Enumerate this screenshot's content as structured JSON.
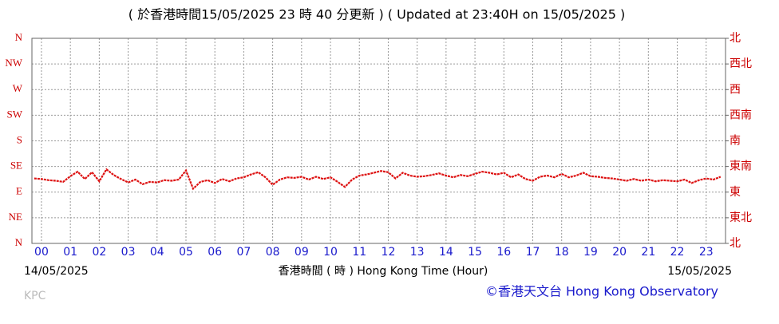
{
  "chart_data": {
    "type": "line",
    "title": "( 於香港時間15/05/2025 23 時 40 分更新 ) ( Updated at 23:40H on 15/05/2025 )",
    "xlabel": "香港時間 ( 時 )  Hong Kong Time (Hour)",
    "start_date": "14/05/2025",
    "end_date": "15/05/2025",
    "credit": "©香港天文台 Hong Kong Observatory",
    "watermark": "KPC",
    "xlim": [
      -0.33,
      23.67
    ],
    "ylim": [
      0,
      360
    ],
    "y2lim": [
      0,
      360
    ],
    "grid": true,
    "xticks": [
      {
        "value": 0,
        "label": "00"
      },
      {
        "value": 1,
        "label": "01"
      },
      {
        "value": 2,
        "label": "02"
      },
      {
        "value": 3,
        "label": "03"
      },
      {
        "value": 4,
        "label": "04"
      },
      {
        "value": 5,
        "label": "05"
      },
      {
        "value": 6,
        "label": "06"
      },
      {
        "value": 7,
        "label": "07"
      },
      {
        "value": 8,
        "label": "08"
      },
      {
        "value": 9,
        "label": "09"
      },
      {
        "value": 10,
        "label": "10"
      },
      {
        "value": 11,
        "label": "11"
      },
      {
        "value": 12,
        "label": "12"
      },
      {
        "value": 13,
        "label": "13"
      },
      {
        "value": 14,
        "label": "14"
      },
      {
        "value": 15,
        "label": "15"
      },
      {
        "value": 16,
        "label": "16"
      },
      {
        "value": 17,
        "label": "17"
      },
      {
        "value": 18,
        "label": "18"
      },
      {
        "value": 19,
        "label": "19"
      },
      {
        "value": 20,
        "label": "20"
      },
      {
        "value": 21,
        "label": "21"
      },
      {
        "value": 22,
        "label": "22"
      },
      {
        "value": 23,
        "label": "23"
      }
    ],
    "yticks": [
      {
        "value": 0,
        "label": "N"
      },
      {
        "value": 45,
        "label": "NE"
      },
      {
        "value": 90,
        "label": "E"
      },
      {
        "value": 135,
        "label": "SE"
      },
      {
        "value": 180,
        "label": "S"
      },
      {
        "value": 225,
        "label": "SW"
      },
      {
        "value": 270,
        "label": "W"
      },
      {
        "value": 315,
        "label": "NW"
      },
      {
        "value": 360,
        "label": "N"
      }
    ],
    "y2ticks": [
      {
        "value": 0,
        "label": "北"
      },
      {
        "value": 45,
        "label": "東北"
      },
      {
        "value": 90,
        "label": "東"
      },
      {
        "value": 135,
        "label": "東南"
      },
      {
        "value": 180,
        "label": "南"
      },
      {
        "value": 225,
        "label": "西南"
      },
      {
        "value": 270,
        "label": "西"
      },
      {
        "value": 315,
        "label": "西北"
      },
      {
        "value": 360,
        "label": "北"
      }
    ],
    "series": [
      {
        "color": "#dd1111",
        "x": [
          -0.25,
          0,
          0.25,
          0.5,
          0.75,
          1,
          1.25,
          1.5,
          1.75,
          2,
          2.25,
          2.5,
          2.75,
          3,
          3.25,
          3.5,
          3.75,
          4,
          4.25,
          4.5,
          4.75,
          5,
          5.25,
          5.5,
          5.75,
          6,
          6.25,
          6.5,
          6.75,
          7,
          7.25,
          7.5,
          7.75,
          8,
          8.25,
          8.5,
          8.75,
          9,
          9.25,
          9.5,
          9.75,
          10,
          10.25,
          10.5,
          10.75,
          11,
          11.25,
          11.5,
          11.75,
          12,
          12.25,
          12.5,
          12.75,
          13,
          13.25,
          13.5,
          13.75,
          14,
          14.25,
          14.5,
          14.75,
          15,
          15.25,
          15.5,
          15.75,
          16,
          16.25,
          16.5,
          16.75,
          17,
          17.25,
          17.5,
          17.75,
          18,
          18.25,
          18.5,
          18.75,
          19,
          19.25,
          19.5,
          19.75,
          20,
          20.25,
          20.5,
          20.75,
          21,
          21.25,
          21.5,
          21.75,
          22,
          22.25,
          22.5,
          22.75,
          23,
          23.25,
          23.5
        ],
        "values": [
          114,
          113,
          111,
          110,
          108,
          118,
          126,
          113,
          125,
          109,
          130,
          120,
          113,
          107,
          112,
          104,
          108,
          107,
          111,
          110,
          112,
          128,
          96,
          108,
          111,
          106,
          113,
          109,
          114,
          116,
          121,
          125,
          116,
          103,
          112,
          116,
          115,
          117,
          112,
          117,
          113,
          116,
          108,
          99,
          112,
          119,
          121,
          124,
          127,
          125,
          114,
          124,
          119,
          117,
          118,
          120,
          123,
          119,
          116,
          120,
          118,
          122,
          126,
          124,
          121,
          124,
          116,
          121,
          113,
          110,
          117,
          119,
          116,
          122,
          116,
          119,
          124,
          118,
          117,
          115,
          114,
          112,
          110,
          113,
          110,
          112,
          109,
          111,
          110,
          109,
          112,
          106,
          111,
          114,
          112,
          117
        ]
      }
    ]
  }
}
